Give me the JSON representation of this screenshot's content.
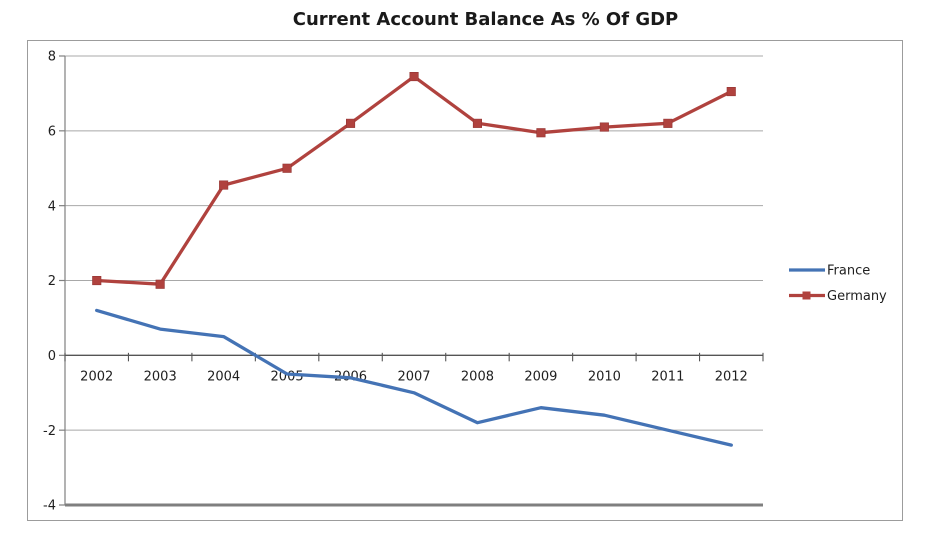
{
  "title": "Current Account Balance As % Of GDP",
  "chart_data": {
    "type": "line",
    "title": "Current Account Balance As % Of GDP",
    "categories": [
      "2002",
      "2003",
      "2004",
      "2005",
      "2006",
      "2007",
      "2008",
      "2009",
      "2010",
      "2011",
      "2012"
    ],
    "series": [
      {
        "name": "France",
        "color": "#4473B5",
        "marker": "none",
        "values": [
          1.2,
          0.7,
          0.5,
          -0.5,
          -0.6,
          -1.0,
          -1.8,
          -1.4,
          -1.6,
          -2.0,
          -2.4
        ]
      },
      {
        "name": "Germany",
        "color": "#B0423E",
        "marker": "square",
        "values": [
          2.0,
          1.9,
          4.55,
          5.0,
          6.2,
          7.45,
          6.2,
          5.95,
          6.1,
          6.2,
          7.05
        ]
      }
    ],
    "ylim": [
      -4,
      8
    ],
    "yticks": [
      8,
      6,
      4,
      2,
      0,
      -2,
      -4
    ],
    "xlabel": "",
    "ylabel": "",
    "grid": true,
    "legend_position": "right-outside"
  },
  "colors": {
    "gridline": "#A8A8A8",
    "zero_axis": "#555555",
    "axis_line": "#808080",
    "bottom_axis": "#7F7F7F",
    "chart_border": "#9C9C9C",
    "text": "#1F1F1F",
    "background": "#FFFFFF"
  }
}
